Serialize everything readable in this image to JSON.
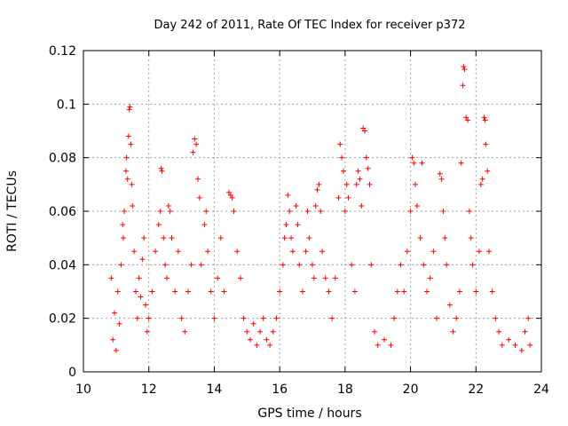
{
  "chart_data": {
    "type": "scatter",
    "title": "Day 242 of 2011, Rate Of TEC Index for receiver p372",
    "xlabel": "GPS time / hours",
    "ylabel": "ROTI / TECUs",
    "xlim": [
      10,
      24
    ],
    "ylim": [
      0,
      0.12
    ],
    "x_ticks": [
      "10",
      "12",
      "14",
      "16",
      "18",
      "20",
      "22",
      "24"
    ],
    "y_ticks": [
      "0",
      "0.02",
      "0.04",
      "0.06",
      "0.08",
      "0.1",
      "0.12"
    ],
    "grid": true,
    "marker": "plus",
    "color": "#ff0000",
    "series": [
      {
        "points": [
          [
            10.85,
            0.035
          ],
          [
            10.9,
            0.012
          ],
          [
            10.95,
            0.022
          ],
          [
            11.0,
            0.008
          ],
          [
            11.05,
            0.03
          ],
          [
            11.1,
            0.018
          ],
          [
            11.15,
            0.04
          ],
          [
            11.2,
            0.055
          ],
          [
            11.22,
            0.05
          ],
          [
            11.25,
            0.06
          ],
          [
            11.3,
            0.075
          ],
          [
            11.32,
            0.08
          ],
          [
            11.35,
            0.072
          ],
          [
            11.38,
            0.088
          ],
          [
            11.4,
            0.098
          ],
          [
            11.42,
            0.099
          ],
          [
            11.45,
            0.085
          ],
          [
            11.48,
            0.07
          ],
          [
            11.5,
            0.062
          ],
          [
            11.55,
            0.045
          ],
          [
            11.6,
            0.03
          ],
          [
            11.65,
            0.02
          ],
          [
            11.7,
            0.035
          ],
          [
            11.75,
            0.028
          ],
          [
            11.8,
            0.042
          ],
          [
            11.85,
            0.05
          ],
          [
            11.9,
            0.025
          ],
          [
            11.95,
            0.015
          ],
          [
            12.0,
            0.02
          ],
          [
            12.1,
            0.03
          ],
          [
            12.2,
            0.045
          ],
          [
            12.3,
            0.055
          ],
          [
            12.35,
            0.06
          ],
          [
            12.38,
            0.076
          ],
          [
            12.4,
            0.075
          ],
          [
            12.45,
            0.05
          ],
          [
            12.5,
            0.04
          ],
          [
            12.55,
            0.035
          ],
          [
            12.6,
            0.062
          ],
          [
            12.65,
            0.06
          ],
          [
            12.7,
            0.05
          ],
          [
            12.8,
            0.03
          ],
          [
            12.9,
            0.045
          ],
          [
            13.0,
            0.02
          ],
          [
            13.1,
            0.015
          ],
          [
            13.2,
            0.03
          ],
          [
            13.3,
            0.04
          ],
          [
            13.35,
            0.082
          ],
          [
            13.4,
            0.087
          ],
          [
            13.45,
            0.085
          ],
          [
            13.5,
            0.072
          ],
          [
            13.55,
            0.065
          ],
          [
            13.6,
            0.04
          ],
          [
            13.7,
            0.055
          ],
          [
            13.75,
            0.06
          ],
          [
            13.8,
            0.045
          ],
          [
            13.9,
            0.03
          ],
          [
            14.0,
            0.02
          ],
          [
            14.1,
            0.035
          ],
          [
            14.2,
            0.05
          ],
          [
            14.3,
            0.03
          ],
          [
            14.45,
            0.067
          ],
          [
            14.5,
            0.066
          ],
          [
            14.55,
            0.065
          ],
          [
            14.6,
            0.06
          ],
          [
            14.7,
            0.045
          ],
          [
            14.8,
            0.035
          ],
          [
            14.9,
            0.02
          ],
          [
            15.0,
            0.015
          ],
          [
            15.1,
            0.012
          ],
          [
            15.2,
            0.018
          ],
          [
            15.3,
            0.01
          ],
          [
            15.4,
            0.015
          ],
          [
            15.5,
            0.02
          ],
          [
            15.6,
            0.012
          ],
          [
            15.7,
            0.01
          ],
          [
            15.8,
            0.015
          ],
          [
            15.9,
            0.02
          ],
          [
            16.0,
            0.03
          ],
          [
            16.1,
            0.04
          ],
          [
            16.15,
            0.05
          ],
          [
            16.2,
            0.055
          ],
          [
            16.25,
            0.066
          ],
          [
            16.3,
            0.06
          ],
          [
            16.35,
            0.05
          ],
          [
            16.4,
            0.045
          ],
          [
            16.5,
            0.062
          ],
          [
            16.55,
            0.055
          ],
          [
            16.6,
            0.04
          ],
          [
            16.7,
            0.03
          ],
          [
            16.8,
            0.045
          ],
          [
            16.85,
            0.06
          ],
          [
            16.9,
            0.05
          ],
          [
            17.0,
            0.04
          ],
          [
            17.05,
            0.035
          ],
          [
            17.1,
            0.062
          ],
          [
            17.15,
            0.068
          ],
          [
            17.2,
            0.07
          ],
          [
            17.25,
            0.06
          ],
          [
            17.3,
            0.045
          ],
          [
            17.4,
            0.035
          ],
          [
            17.5,
            0.03
          ],
          [
            17.6,
            0.02
          ],
          [
            17.7,
            0.035
          ],
          [
            17.8,
            0.065
          ],
          [
            17.85,
            0.085
          ],
          [
            17.9,
            0.08
          ],
          [
            17.95,
            0.075
          ],
          [
            18.0,
            0.06
          ],
          [
            18.05,
            0.07
          ],
          [
            18.1,
            0.065
          ],
          [
            18.2,
            0.04
          ],
          [
            18.3,
            0.03
          ],
          [
            18.35,
            0.07
          ],
          [
            18.4,
            0.075
          ],
          [
            18.45,
            0.072
          ],
          [
            18.5,
            0.062
          ],
          [
            18.55,
            0.091
          ],
          [
            18.6,
            0.09
          ],
          [
            18.65,
            0.08
          ],
          [
            18.7,
            0.076
          ],
          [
            18.75,
            0.07
          ],
          [
            18.8,
            0.04
          ],
          [
            18.9,
            0.015
          ],
          [
            19.0,
            0.01
          ],
          [
            19.2,
            0.012
          ],
          [
            19.4,
            0.01
          ],
          [
            19.5,
            0.02
          ],
          [
            19.6,
            0.03
          ],
          [
            19.7,
            0.04
          ],
          [
            19.8,
            0.03
          ],
          [
            19.9,
            0.045
          ],
          [
            20.0,
            0.06
          ],
          [
            20.05,
            0.08
          ],
          [
            20.1,
            0.078
          ],
          [
            20.15,
            0.07
          ],
          [
            20.2,
            0.062
          ],
          [
            20.3,
            0.05
          ],
          [
            20.35,
            0.078
          ],
          [
            20.4,
            0.04
          ],
          [
            20.5,
            0.03
          ],
          [
            20.6,
            0.035
          ],
          [
            20.7,
            0.045
          ],
          [
            20.8,
            0.02
          ],
          [
            20.9,
            0.074
          ],
          [
            20.95,
            0.072
          ],
          [
            21.0,
            0.06
          ],
          [
            21.05,
            0.05
          ],
          [
            21.1,
            0.04
          ],
          [
            21.2,
            0.025
          ],
          [
            21.3,
            0.015
          ],
          [
            21.4,
            0.02
          ],
          [
            21.5,
            0.03
          ],
          [
            21.55,
            0.078
          ],
          [
            21.6,
            0.107
          ],
          [
            21.62,
            0.114
          ],
          [
            21.65,
            0.113
          ],
          [
            21.7,
            0.095
          ],
          [
            21.75,
            0.094
          ],
          [
            21.8,
            0.06
          ],
          [
            21.85,
            0.05
          ],
          [
            21.9,
            0.04
          ],
          [
            22.0,
            0.03
          ],
          [
            22.1,
            0.045
          ],
          [
            22.15,
            0.07
          ],
          [
            22.2,
            0.072
          ],
          [
            22.25,
            0.095
          ],
          [
            22.28,
            0.094
          ],
          [
            22.3,
            0.085
          ],
          [
            22.35,
            0.075
          ],
          [
            22.4,
            0.045
          ],
          [
            22.5,
            0.03
          ],
          [
            22.6,
            0.02
          ],
          [
            22.7,
            0.015
          ],
          [
            22.8,
            0.01
          ],
          [
            23.0,
            0.012
          ],
          [
            23.2,
            0.01
          ],
          [
            23.4,
            0.008
          ],
          [
            23.5,
            0.015
          ],
          [
            23.6,
            0.02
          ],
          [
            23.65,
            0.01
          ]
        ]
      }
    ]
  }
}
